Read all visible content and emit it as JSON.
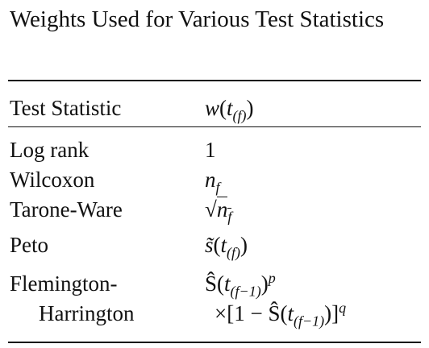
{
  "title": "Weights Used for Various Test Statistics",
  "table": {
    "header": {
      "statistic": [
        "Test Statistic"
      ],
      "weight": [
        [
          {
            "text": "w",
            "italic": true
          },
          {
            "text": "("
          },
          {
            "text": "t",
            "italic": true
          },
          {
            "text": "(f)",
            "pos": "sub",
            "italic": true
          },
          {
            "text": ")"
          }
        ]
      ]
    },
    "rows": [
      {
        "statistic": [
          "Log rank"
        ],
        "weight": [
          [
            {
              "text": "1"
            }
          ]
        ]
      },
      {
        "statistic": [
          "Wilcoxon"
        ],
        "weight": [
          [
            {
              "text": "n",
              "italic": true
            },
            {
              "text": "f",
              "pos": "sub",
              "italic": true
            }
          ]
        ]
      },
      {
        "statistic": [
          "Tarone-Ware"
        ],
        "weight": [
          [
            {
              "text": "√"
            },
            {
              "text": "n",
              "italic": true,
              "over": true
            },
            {
              "text": "f",
              "pos": "sub",
              "italic": true,
              "over": true
            }
          ]
        ]
      },
      {
        "statistic": [
          "Peto"
        ],
        "weight": [
          [
            {
              "text": "s̃",
              "italic": true
            },
            {
              "text": "("
            },
            {
              "text": "t",
              "italic": true
            },
            {
              "text": "(f)",
              "pos": "sub",
              "italic": true
            },
            {
              "text": ")"
            }
          ]
        ]
      },
      {
        "statistic": [
          "Flemington-",
          "Harrington"
        ],
        "weight": [
          [
            {
              "text": "Ŝ"
            },
            {
              "text": "("
            },
            {
              "text": "t",
              "italic": true
            },
            {
              "text": "(f−1)",
              "pos": "sub",
              "italic": true
            },
            {
              "text": ")"
            },
            {
              "text": "p",
              "pos": "sup",
              "italic": true
            }
          ],
          [
            {
              "text": "×[1 − Ŝ("
            },
            {
              "text": "t",
              "italic": true
            },
            {
              "text": "(f−1)",
              "pos": "sub",
              "italic": true
            },
            {
              "text": ")]"
            },
            {
              "text": "q",
              "pos": "sup",
              "italic": true
            }
          ]
        ]
      }
    ]
  }
}
